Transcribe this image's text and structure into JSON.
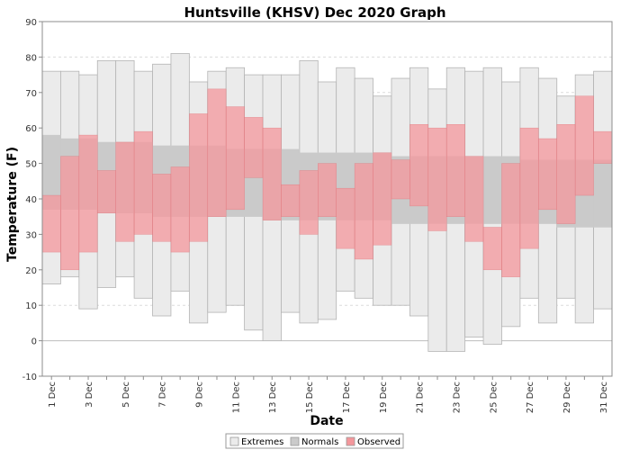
{
  "chart_data": {
    "type": "bar",
    "title": "Huntsville (KHSV) Dec 2020 Graph",
    "xlabel": "Date",
    "ylabel": "Temperature (F)",
    "ylim": [
      -10,
      90
    ],
    "yticks": [
      -10,
      0,
      10,
      20,
      30,
      40,
      50,
      60,
      70,
      80,
      90
    ],
    "grid": true,
    "legend_position": "bottom",
    "categories": [
      "1 Dec",
      "2 Dec",
      "3 Dec",
      "4 Dec",
      "5 Dec",
      "6 Dec",
      "7 Dec",
      "8 Dec",
      "9 Dec",
      "10 Dec",
      "11 Dec",
      "12 Dec",
      "13 Dec",
      "14 Dec",
      "15 Dec",
      "16 Dec",
      "17 Dec",
      "18 Dec",
      "19 Dec",
      "20 Dec",
      "21 Dec",
      "22 Dec",
      "23 Dec",
      "24 Dec",
      "25 Dec",
      "26 Dec",
      "27 Dec",
      "28 Dec",
      "29 Dec",
      "30 Dec",
      "31 Dec"
    ],
    "tick_labels": [
      "1 Dec",
      "",
      "3 Dec",
      "",
      "5 Dec",
      "",
      "7 Dec",
      "",
      "9 Dec",
      "",
      "11 Dec",
      "",
      "13 Dec",
      "",
      "15 Dec",
      "",
      "17 Dec",
      "",
      "19 Dec",
      "",
      "21 Dec",
      "",
      "23 Dec",
      "",
      "25 Dec",
      "",
      "27 Dec",
      "",
      "29 Dec",
      "",
      "31 Dec"
    ],
    "colors": {
      "extremes": "#ebebeb",
      "extremes_border": "#b4b4b4",
      "normals": "#cacaca",
      "observed": "#f4979c",
      "grid": "#dcdcdc"
    },
    "series": [
      {
        "name": "Extremes",
        "high": [
          76,
          76,
          75,
          79,
          79,
          76,
          78,
          81,
          73,
          76,
          77,
          75,
          75,
          75,
          79,
          73,
          77,
          74,
          69,
          74,
          77,
          71,
          77,
          76,
          77,
          73,
          77,
          74,
          69,
          75,
          76
        ],
        "low": [
          16,
          18,
          9,
          15,
          18,
          12,
          7,
          14,
          5,
          8,
          10,
          3,
          0,
          8,
          5,
          6,
          14,
          12,
          10,
          10,
          7,
          -3,
          -3,
          1,
          -1,
          4,
          12,
          5,
          12,
          5,
          9
        ]
      },
      {
        "name": "Normals",
        "high": [
          58,
          57,
          57,
          56,
          56,
          56,
          55,
          55,
          55,
          55,
          54,
          54,
          54,
          54,
          53,
          53,
          53,
          53,
          53,
          52,
          52,
          52,
          52,
          52,
          52,
          52,
          51,
          51,
          51,
          51,
          51
        ],
        "low": [
          37,
          37,
          37,
          36,
          36,
          36,
          35,
          35,
          35,
          35,
          35,
          35,
          34,
          34,
          34,
          34,
          34,
          34,
          34,
          33,
          33,
          33,
          33,
          33,
          33,
          33,
          33,
          33,
          32,
          32,
          32
        ]
      },
      {
        "name": "Observed",
        "high": [
          41,
          52,
          58,
          48,
          56,
          59,
          47,
          49,
          64,
          71,
          66,
          63,
          60,
          44,
          48,
          50,
          43,
          50,
          53,
          51,
          61,
          60,
          61,
          52,
          32,
          50,
          60,
          57,
          61,
          69,
          59
        ],
        "low": [
          25,
          20,
          25,
          36,
          28,
          30,
          28,
          25,
          28,
          35,
          37,
          46,
          34,
          35,
          30,
          35,
          26,
          23,
          27,
          40,
          38,
          31,
          35,
          28,
          20,
          18,
          26,
          37,
          33,
          41,
          50
        ]
      }
    ]
  }
}
